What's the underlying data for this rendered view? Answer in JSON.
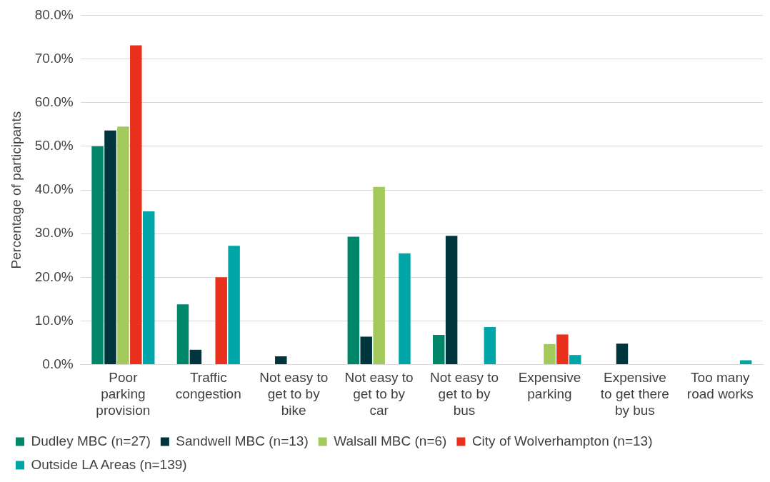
{
  "chart_data": {
    "type": "bar",
    "ylabel": "Percentage of participants",
    "categories": [
      "Poor\nparking\nprovision",
      "Traffic\ncongestion",
      "Not easy to\nget to by\nbike",
      "Not easy to\nget to by\ncar",
      "Not easy to\nget to by\nbus",
      "Expensive\nparking",
      "Expensive\nto get there\nby bus",
      "Too many\nroad works"
    ],
    "series": [
      {
        "name": "Dudley MBC (n=27)",
        "color": "#00876a",
        "values": [
          50.0,
          13.8,
          0,
          29.3,
          6.8,
          0,
          0,
          0
        ]
      },
      {
        "name": "Sandwell MBC (n=13)",
        "color": "#00353d",
        "values": [
          53.6,
          3.4,
          1.9,
          6.4,
          29.5,
          0,
          4.8,
          0
        ]
      },
      {
        "name": "Walsall MBC (n=6)",
        "color": "#a4c95b",
        "values": [
          54.5,
          0,
          0,
          40.7,
          0,
          4.7,
          0,
          0
        ]
      },
      {
        "name": "City of Wolverhampton (n=13)",
        "color": "#e8301c",
        "values": [
          73.1,
          20.0,
          0,
          0,
          0,
          6.9,
          0,
          0
        ]
      },
      {
        "name": "Outside LA Areas (n=139)",
        "color": "#00a5a8",
        "values": [
          35.1,
          27.2,
          0,
          25.5,
          8.6,
          2.2,
          0,
          1.0
        ]
      }
    ],
    "ylim": [
      0,
      80
    ],
    "yticks": [
      {
        "value": 0,
        "label": "0.0%"
      },
      {
        "value": 10,
        "label": "10.0%"
      },
      {
        "value": 20,
        "label": "20.0%"
      },
      {
        "value": 30,
        "label": "30.0%"
      },
      {
        "value": 40,
        "label": "40.0%"
      },
      {
        "value": 50,
        "label": "50.0%"
      },
      {
        "value": 60,
        "label": "60.0%"
      },
      {
        "value": 70,
        "label": "70.0%"
      },
      {
        "value": 80,
        "label": "80.0%"
      }
    ],
    "grid": "y",
    "legend": "bottom"
  }
}
